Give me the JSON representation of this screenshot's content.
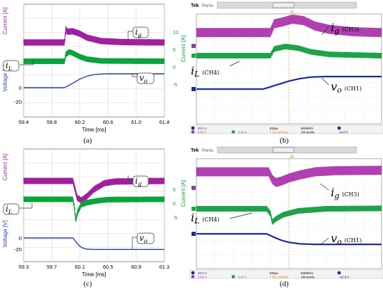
{
  "colors": {
    "ig": "#a020a0",
    "il": "#0aa43c",
    "vo": "#1f3fb0",
    "osc_ig": "#b040b0",
    "osc_il": "#1ea34a",
    "osc_vo": "#1a2a9a",
    "osc_bg": "#ffffff",
    "osc_grid": "#cfcfcf",
    "osc_bar": "#d9d9d9"
  },
  "panels": [
    {
      "caption": "(a)",
      "labels": {
        "ig": "i",
        "ig_sub": "g",
        "il": "i",
        "il_sub": "L",
        "vo": "v",
        "vo_sub": "o"
      },
      "axis": {
        "left_top": "Current [A]",
        "left_bottom": "Voltage [V]",
        "right": "Current [A]",
        "xlabel": "Time [ms]"
      }
    },
    {
      "caption": "(b)",
      "scope": {
        "brand": "Tek",
        "mode": "PreVu",
        "marker": "U"
      },
      "labels": {
        "ig": "i",
        "ig_sub": "g",
        "ig_ch": "(CH3)",
        "il": "i",
        "il_sub": "L",
        "il_ch": "(CH4)",
        "vo": "v",
        "vo_sub": "o",
        "vo_ch": "(CH1)"
      },
      "status": {
        "ch1": "20.0 V",
        "ch3": "5.00 A",
        "ch4": "5.00 A",
        "timebase": "200µs",
        "rate": "500MS/s",
        "points": "1M points",
        "trigger": "14.0 V",
        "delay": "T 613.6000µs"
      }
    },
    {
      "caption": "(c)",
      "labels": {
        "ig": "i",
        "ig_sub": "g",
        "il": "i",
        "il_sub": "L",
        "vo": "v",
        "vo_sub": "o"
      },
      "axis": {
        "left_top": "Current [A]",
        "left_bottom": "Voltage [V]",
        "right": "Current [A]",
        "xlabel": "Time [ms]"
      }
    },
    {
      "caption": "(d)",
      "scope": {
        "brand": "Tek",
        "mode": "PreVu",
        "marker": "U"
      },
      "labels": {
        "ig": "i",
        "ig_sub": "g",
        "ig_ch": "(CH3)",
        "il": "i",
        "il_sub": "L",
        "il_ch": "(CH4)",
        "vo": "v",
        "vo_sub": "o",
        "vo_ch": "(CH1)"
      },
      "status": {
        "ch1": "20.0 V",
        "ch3": "5.00 A",
        "ch4": "5.00 A",
        "timebase": "200µs",
        "rate": "500MS/s",
        "points": "1M points",
        "trigger": "-12.0 V",
        "delay": "T 631.2000µs"
      }
    }
  ],
  "chart_data": [
    {
      "type": "line",
      "panel": "a",
      "xlabel": "Time [ms]",
      "ylabel": "Current [A]",
      "ylabel_bottom": "Voltage [V]",
      "ylabel_right": "Current [A]",
      "x_ticks": [
        "59.4",
        "59.8",
        "60.2",
        "60.6",
        "61.0",
        "61.4"
      ],
      "xlim": [
        59.4,
        61.4
      ],
      "y_right_ticks": [
        "10",
        "5",
        "0",
        "-5"
      ],
      "y_left_ticks": [
        "0",
        "-20"
      ],
      "grid": true,
      "series": [
        {
          "name": "ig",
          "kind": "band",
          "x": [
            59.4,
            59.98,
            60.0,
            60.02,
            60.1,
            60.2,
            60.3,
            60.5,
            60.8,
            61.4
          ],
          "y": [
            7.0,
            7.0,
            10.8,
            10.1,
            10.2,
            9.5,
            8.4,
            7.4,
            7.1,
            7.0
          ],
          "ripple": 0.9
        },
        {
          "name": "iL",
          "kind": "band",
          "x": [
            59.4,
            59.98,
            60.0,
            60.05,
            60.1,
            60.2,
            60.3,
            60.5,
            61.4
          ],
          "y": [
            1.6,
            1.6,
            3.6,
            4.3,
            3.9,
            2.9,
            2.2,
            1.7,
            1.6
          ],
          "ripple": 0.8
        },
        {
          "name": "vo",
          "kind": "line",
          "x": [
            59.4,
            59.98,
            60.1,
            60.2,
            60.3,
            60.4,
            60.5,
            60.6,
            61.4
          ],
          "y": [
            0,
            0,
            6.5,
            12.5,
            16.5,
            18.8,
            19.7,
            20.0,
            20.0
          ]
        }
      ]
    },
    {
      "type": "line",
      "panel": "b",
      "series": [
        {
          "name": "ig (CH3)",
          "kind": "band",
          "x": [
            0,
            0.4,
            0.42,
            0.46,
            0.52,
            0.58,
            0.64,
            0.72,
            0.85,
            1.0
          ],
          "y": [
            0.35,
            0.35,
            0.58,
            0.62,
            0.7,
            0.66,
            0.52,
            0.43,
            0.37,
            0.35
          ],
          "ripple": 0.09
        },
        {
          "name": "iL (CH4)",
          "kind": "band",
          "x": [
            0,
            0.4,
            0.42,
            0.48,
            0.55,
            0.62,
            0.72,
            1.0
          ],
          "y": [
            0.0,
            0.0,
            0.16,
            0.22,
            0.18,
            0.09,
            0.03,
            0.0
          ],
          "ripple": 0.06
        },
        {
          "name": "vo (CH1)",
          "kind": "line",
          "x": [
            0,
            0.36,
            0.44,
            0.5,
            0.56,
            0.62,
            0.7,
            1.0
          ],
          "y": [
            0,
            0,
            0.18,
            0.32,
            0.42,
            0.48,
            0.5,
            0.5
          ]
        }
      ]
    },
    {
      "type": "line",
      "panel": "c",
      "xlabel": "Time [ms]",
      "ylabel": "Current [A]",
      "ylabel_bottom": "Voltage [V]",
      "ylabel_right": "Current [A]",
      "x_ticks": [
        "59.3",
        "59.7",
        "60.1",
        "60.5",
        "60.9",
        "61.3"
      ],
      "xlim": [
        59.3,
        61.3
      ],
      "y_right_ticks": [
        "5",
        "0",
        "-5"
      ],
      "y_left_ticks": [
        "0",
        "-20"
      ],
      "grid": true,
      "series": [
        {
          "name": "ig",
          "kind": "band",
          "x": [
            59.3,
            60.0,
            60.02,
            60.06,
            60.12,
            60.2,
            60.3,
            60.45,
            60.6,
            61.3
          ],
          "y": [
            8.0,
            8.0,
            6.0,
            2.0,
            1.0,
            2.5,
            5.0,
            7.2,
            7.8,
            8.0
          ],
          "ripple": 0.9
        },
        {
          "name": "iL",
          "kind": "band",
          "x": [
            59.3,
            60.0,
            60.02,
            60.04,
            60.07,
            60.12,
            60.2,
            60.35,
            60.5,
            61.3
          ],
          "y": [
            1.4,
            1.4,
            -1.5,
            -6.0,
            -3.0,
            -0.5,
            0.2,
            0.9,
            1.3,
            1.4
          ],
          "ripple": 0.8
        },
        {
          "name": "vo",
          "kind": "line",
          "x": [
            59.3,
            60.0,
            60.05,
            60.1,
            60.15,
            60.2,
            60.3,
            61.3
          ],
          "y": [
            0,
            0,
            -8,
            -15,
            -18.5,
            -20.0,
            -20.5,
            -20.5
          ]
        }
      ]
    },
    {
      "type": "line",
      "panel": "d",
      "series": [
        {
          "name": "ig (CH3)",
          "kind": "band",
          "x": [
            0,
            0.39,
            0.41,
            0.43,
            0.46,
            0.5,
            0.56,
            0.64,
            0.75,
            1.0
          ],
          "y": [
            0.42,
            0.42,
            0.22,
            0.14,
            0.18,
            0.26,
            0.34,
            0.42,
            0.45,
            0.46
          ],
          "ripple": 0.09
        },
        {
          "name": "iL (CH4)",
          "kind": "band",
          "x": [
            0,
            0.38,
            0.4,
            0.41,
            0.43,
            0.47,
            0.55,
            0.7,
            1.0
          ],
          "y": [
            0.0,
            0.0,
            -0.12,
            -0.32,
            -0.24,
            -0.14,
            -0.05,
            0.0,
            0.01
          ],
          "ripple": 0.06
        },
        {
          "name": "vo (CH1)",
          "kind": "line",
          "x": [
            0,
            0.38,
            0.42,
            0.46,
            0.5,
            0.56,
            0.64,
            1.0
          ],
          "y": [
            0,
            0,
            -0.14,
            -0.26,
            -0.34,
            -0.4,
            -0.42,
            -0.42
          ]
        }
      ]
    }
  ]
}
